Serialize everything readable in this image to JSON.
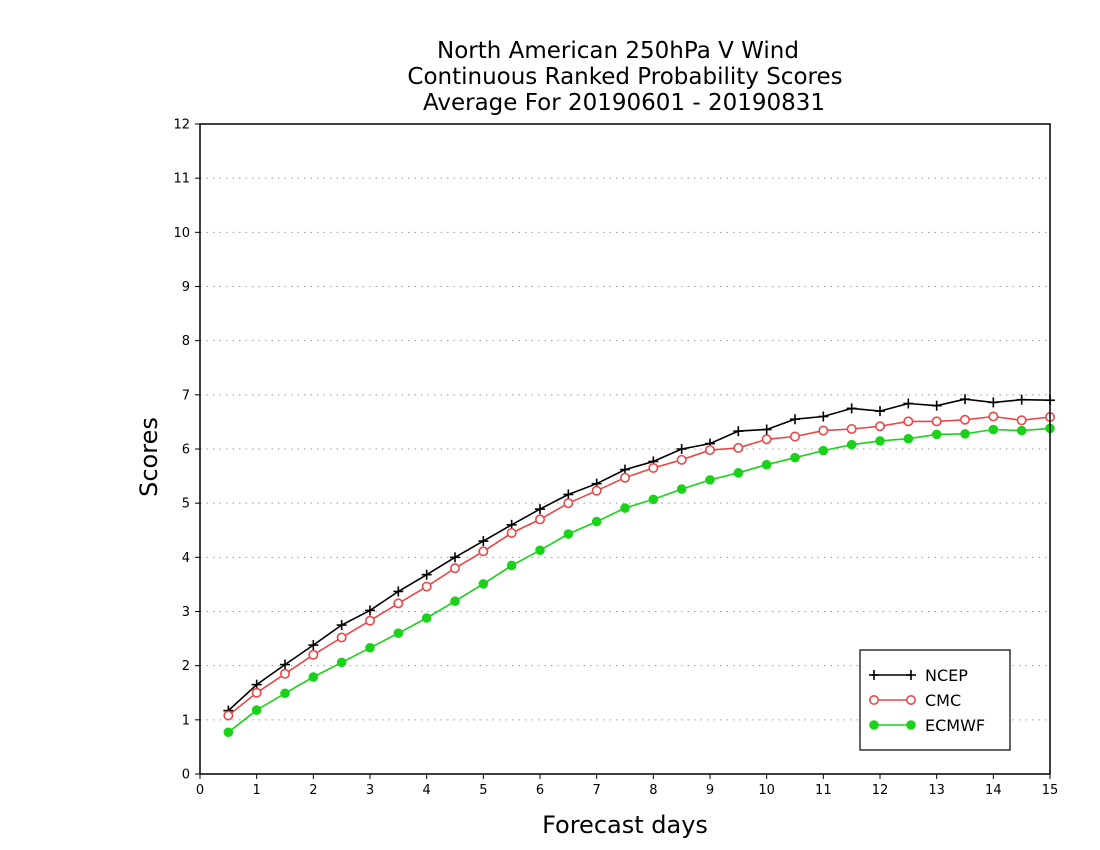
{
  "chart_data": {
    "type": "line",
    "title": [
      "North American 250hPa V Wind",
      "Continuous Ranked Probability Scores",
      "Average For 20190601 - 20190831"
    ],
    "xlabel": "Forecast days",
    "ylabel": "Scores",
    "xlim": [
      0,
      15
    ],
    "ylim": [
      0,
      12
    ],
    "xticks": [
      0,
      1,
      2,
      3,
      4,
      5,
      6,
      7,
      8,
      9,
      10,
      11,
      12,
      13,
      14,
      15
    ],
    "yticks": [
      0,
      1,
      2,
      3,
      4,
      5,
      6,
      7,
      8,
      9,
      10,
      11,
      12
    ],
    "grid": "horizontal dotted",
    "legend_position": "bottom-right",
    "x": [
      0.5,
      1,
      1.5,
      2,
      2.5,
      3,
      3.5,
      4,
      4.5,
      5,
      5.5,
      6,
      6.5,
      7,
      7.5,
      8,
      8.5,
      9,
      9.5,
      10,
      10.5,
      11,
      11.5,
      12,
      12.5,
      13,
      13.5,
      14,
      14.5,
      15
    ],
    "series": [
      {
        "name": "NCEP",
        "color": "#000000",
        "marker": "plus",
        "values": [
          1.17,
          1.65,
          2.02,
          2.38,
          2.75,
          3.02,
          3.37,
          3.68,
          4.0,
          4.3,
          4.6,
          4.89,
          5.16,
          5.36,
          5.62,
          5.77,
          6.0,
          6.1,
          6.33,
          6.36,
          6.55,
          6.6,
          6.75,
          6.7,
          6.84,
          6.8,
          6.92,
          6.86,
          6.91,
          6.9
        ]
      },
      {
        "name": "CMC",
        "color": "#e8474a",
        "marker": "open-circle",
        "values": [
          1.08,
          1.5,
          1.85,
          2.2,
          2.52,
          2.83,
          3.15,
          3.46,
          3.8,
          4.11,
          4.45,
          4.7,
          5.0,
          5.23,
          5.47,
          5.65,
          5.8,
          5.98,
          6.02,
          6.18,
          6.23,
          6.34,
          6.37,
          6.42,
          6.51,
          6.51,
          6.54,
          6.6,
          6.53,
          6.59
        ]
      },
      {
        "name": "ECMWF",
        "color": "#19d219",
        "marker": "filled-circle",
        "values": [
          0.77,
          1.18,
          1.49,
          1.79,
          2.06,
          2.33,
          2.6,
          2.88,
          3.19,
          3.51,
          3.85,
          4.13,
          4.43,
          4.66,
          4.91,
          5.07,
          5.26,
          5.43,
          5.56,
          5.71,
          5.84,
          5.97,
          6.08,
          6.15,
          6.19,
          6.27,
          6.28,
          6.36,
          6.34,
          6.38
        ]
      }
    ]
  }
}
